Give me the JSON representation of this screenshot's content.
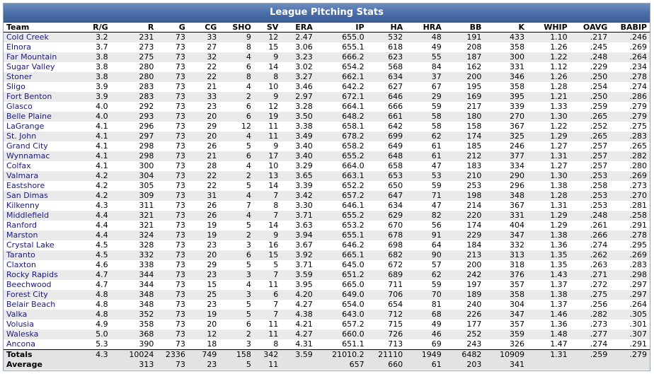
{
  "title": "League Pitching Stats",
  "columns": [
    "Team",
    "R/G",
    "R",
    "G",
    "CG",
    "SHO",
    "SV",
    "ERA",
    "IP",
    "HA",
    "HRA",
    "BB",
    "K",
    "WHIP",
    "OAVG",
    "BABIP"
  ],
  "rows": [
    [
      "Cold Creek",
      "3.2",
      "231",
      "73",
      "33",
      "9",
      "12",
      "2.47",
      "655.0",
      "532",
      "48",
      "191",
      "433",
      "1.10",
      ".217",
      ".246"
    ],
    [
      "Elnora",
      "3.7",
      "273",
      "73",
      "27",
      "8",
      "15",
      "3.06",
      "655.1",
      "618",
      "49",
      "208",
      "358",
      "1.26",
      ".245",
      ".269"
    ],
    [
      "Far Mountain",
      "3.8",
      "275",
      "73",
      "32",
      "4",
      "9",
      "3.23",
      "666.2",
      "623",
      "55",
      "187",
      "300",
      "1.22",
      ".248",
      ".264"
    ],
    [
      "Sugar Valley",
      "3.8",
      "280",
      "73",
      "22",
      "6",
      "14",
      "3.02",
      "654.2",
      "568",
      "84",
      "162",
      "331",
      "1.12",
      ".229",
      ".234"
    ],
    [
      "Stoner",
      "3.8",
      "280",
      "73",
      "22",
      "8",
      "8",
      "3.27",
      "662.1",
      "634",
      "37",
      "200",
      "346",
      "1.26",
      ".250",
      ".278"
    ],
    [
      "Sligo",
      "3.9",
      "283",
      "73",
      "21",
      "4",
      "10",
      "3.46",
      "642.2",
      "627",
      "67",
      "195",
      "358",
      "1.28",
      ".254",
      ".274"
    ],
    [
      "Fort Benton",
      "3.9",
      "283",
      "73",
      "33",
      "2",
      "9",
      "2.97",
      "672.1",
      "646",
      "29",
      "169",
      "395",
      "1.21",
      ".250",
      ".286"
    ],
    [
      "Glasco",
      "4.0",
      "292",
      "73",
      "23",
      "6",
      "12",
      "3.28",
      "664.1",
      "666",
      "59",
      "217",
      "339",
      "1.33",
      ".259",
      ".279"
    ],
    [
      "Belle Plaine",
      "4.0",
      "293",
      "73",
      "20",
      "6",
      "19",
      "3.50",
      "648.2",
      "661",
      "58",
      "180",
      "270",
      "1.30",
      ".265",
      ".279"
    ],
    [
      "LaGrange",
      "4.1",
      "296",
      "73",
      "29",
      "12",
      "11",
      "3.38",
      "658.1",
      "642",
      "58",
      "158",
      "367",
      "1.22",
      ".252",
      ".275"
    ],
    [
      "St. John",
      "4.1",
      "297",
      "73",
      "20",
      "4",
      "11",
      "3.49",
      "678.2",
      "699",
      "62",
      "174",
      "325",
      "1.29",
      ".265",
      ".283"
    ],
    [
      "Grand City",
      "4.1",
      "298",
      "73",
      "26",
      "5",
      "9",
      "3.40",
      "658.2",
      "649",
      "61",
      "185",
      "246",
      "1.27",
      ".257",
      ".265"
    ],
    [
      "Wynnamac",
      "4.1",
      "298",
      "73",
      "21",
      "6",
      "17",
      "3.40",
      "655.2",
      "648",
      "61",
      "212",
      "377",
      "1.31",
      ".257",
      ".282"
    ],
    [
      "Colfax",
      "4.1",
      "300",
      "73",
      "28",
      "4",
      "10",
      "3.29",
      "664.0",
      "658",
      "47",
      "183",
      "334",
      "1.27",
      ".257",
      ".280"
    ],
    [
      "Valmara",
      "4.2",
      "304",
      "73",
      "22",
      "2",
      "13",
      "3.65",
      "663.1",
      "653",
      "53",
      "210",
      "290",
      "1.30",
      ".253",
      ".269"
    ],
    [
      "Eastshore",
      "4.2",
      "305",
      "73",
      "22",
      "5",
      "14",
      "3.39",
      "652.2",
      "650",
      "59",
      "253",
      "296",
      "1.38",
      ".258",
      ".273"
    ],
    [
      "San Dimas",
      "4.2",
      "309",
      "73",
      "31",
      "4",
      "7",
      "3.42",
      "657.2",
      "647",
      "71",
      "198",
      "348",
      "1.28",
      ".253",
      ".270"
    ],
    [
      "Kilkenny",
      "4.3",
      "311",
      "73",
      "26",
      "7",
      "8",
      "3.30",
      "646.1",
      "634",
      "47",
      "214",
      "367",
      "1.31",
      ".253",
      ".281"
    ],
    [
      "Middlefield",
      "4.4",
      "321",
      "73",
      "26",
      "4",
      "7",
      "3.71",
      "655.2",
      "629",
      "82",
      "220",
      "331",
      "1.29",
      ".248",
      ".258"
    ],
    [
      "Ranford",
      "4.4",
      "321",
      "73",
      "19",
      "5",
      "14",
      "3.63",
      "653.2",
      "670",
      "56",
      "174",
      "404",
      "1.29",
      ".261",
      ".291"
    ],
    [
      "Marston",
      "4.4",
      "324",
      "73",
      "19",
      "2",
      "9",
      "3.94",
      "655.1",
      "678",
      "91",
      "229",
      "347",
      "1.38",
      ".266",
      ".278"
    ],
    [
      "Crystal Lake",
      "4.5",
      "328",
      "73",
      "23",
      "3",
      "16",
      "3.67",
      "646.2",
      "698",
      "64",
      "184",
      "332",
      "1.36",
      ".274",
      ".295"
    ],
    [
      "Taranto",
      "4.5",
      "332",
      "73",
      "20",
      "6",
      "15",
      "3.92",
      "665.1",
      "682",
      "90",
      "213",
      "313",
      "1.35",
      ".262",
      ".269"
    ],
    [
      "Claxton",
      "4.6",
      "338",
      "73",
      "29",
      "5",
      "5",
      "3.71",
      "645.0",
      "672",
      "57",
      "200",
      "318",
      "1.35",
      ".263",
      ".283"
    ],
    [
      "Rocky Rapids",
      "4.7",
      "344",
      "73",
      "23",
      "3",
      "7",
      "3.59",
      "651.2",
      "689",
      "62",
      "242",
      "376",
      "1.43",
      ".271",
      ".298"
    ],
    [
      "Beechwood",
      "4.7",
      "344",
      "73",
      "15",
      "4",
      "11",
      "3.95",
      "665.0",
      "711",
      "59",
      "197",
      "357",
      "1.37",
      ".272",
      ".297"
    ],
    [
      "Forest City",
      "4.8",
      "348",
      "73",
      "25",
      "3",
      "6",
      "4.20",
      "649.0",
      "706",
      "70",
      "189",
      "358",
      "1.38",
      ".275",
      ".297"
    ],
    [
      "Belair Beach",
      "4.8",
      "348",
      "73",
      "23",
      "5",
      "7",
      "4.27",
      "654.0",
      "654",
      "81",
      "240",
      "304",
      "1.37",
      ".256",
      ".264"
    ],
    [
      "Valka",
      "4.8",
      "352",
      "73",
      "19",
      "5",
      "7",
      "4.38",
      "643.0",
      "712",
      "68",
      "226",
      "347",
      "1.46",
      ".282",
      ".305"
    ],
    [
      "Volusia",
      "4.9",
      "358",
      "73",
      "20",
      "6",
      "11",
      "4.21",
      "657.2",
      "715",
      "49",
      "177",
      "357",
      "1.36",
      ".273",
      ".301"
    ],
    [
      "Waleska",
      "5.0",
      "368",
      "73",
      "12",
      "2",
      "11",
      "4.27",
      "660.0",
      "726",
      "46",
      "252",
      "359",
      "1.48",
      ".277",
      ".307"
    ],
    [
      "Ancona",
      "5.3",
      "390",
      "73",
      "18",
      "3",
      "8",
      "4.31",
      "651.1",
      "713",
      "69",
      "243",
      "326",
      "1.47",
      ".274",
      ".291"
    ]
  ],
  "totals": [
    "Totals",
    "4.3",
    "10024",
    "2336",
    "749",
    "158",
    "342",
    "3.59",
    "21010.2",
    "21110",
    "1949",
    "6482",
    "10909",
    "1.31",
    ".259",
    ".279"
  ],
  "average": [
    "Average",
    "",
    "313",
    "73",
    "23",
    "5",
    "11",
    "",
    "657",
    "660",
    "61",
    "203",
    "341",
    "",
    "",
    ""
  ]
}
